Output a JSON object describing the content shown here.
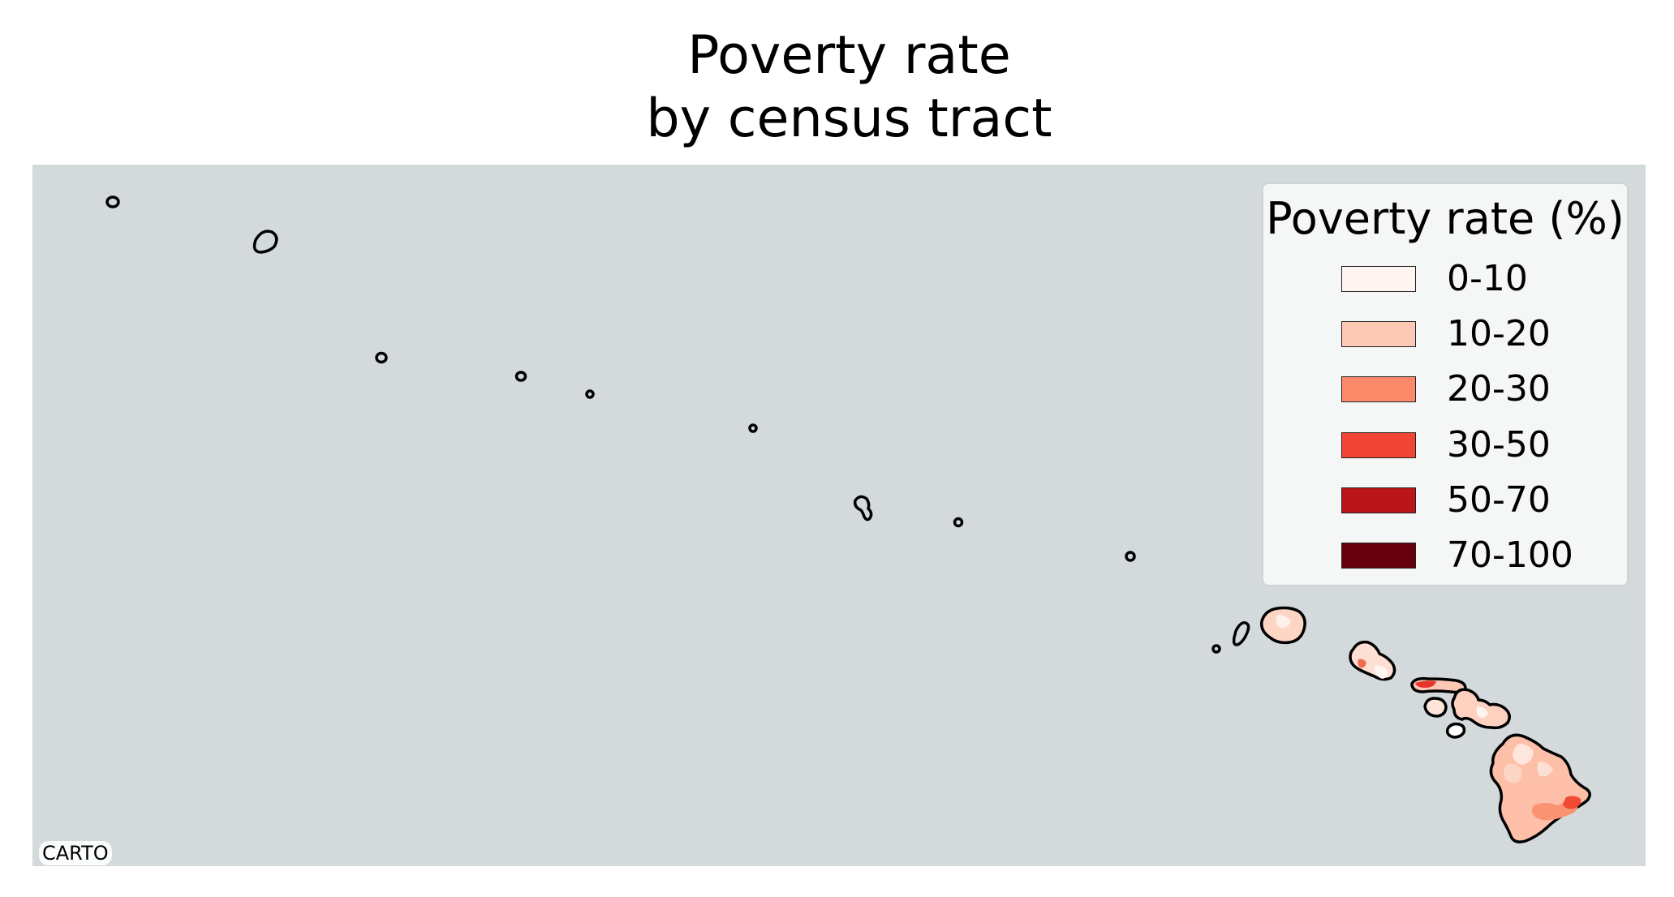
{
  "title": {
    "line1": "Poverty rate",
    "line2": "by census tract"
  },
  "legend": {
    "title": "Poverty rate (%)",
    "items": [
      {
        "label": "0-10",
        "color": "#fff5f0"
      },
      {
        "label": "10-20",
        "color": "#fdc8b4"
      },
      {
        "label": "20-30",
        "color": "#fc8a6a"
      },
      {
        "label": "30-50",
        "color": "#f14432"
      },
      {
        "label": "50-70",
        "color": "#bb151a"
      },
      {
        "label": "70-100",
        "color": "#67000d"
      }
    ]
  },
  "attribution": "CARTO",
  "colors": {
    "ocean": "#d4d9dc",
    "outline": "#000000"
  }
}
